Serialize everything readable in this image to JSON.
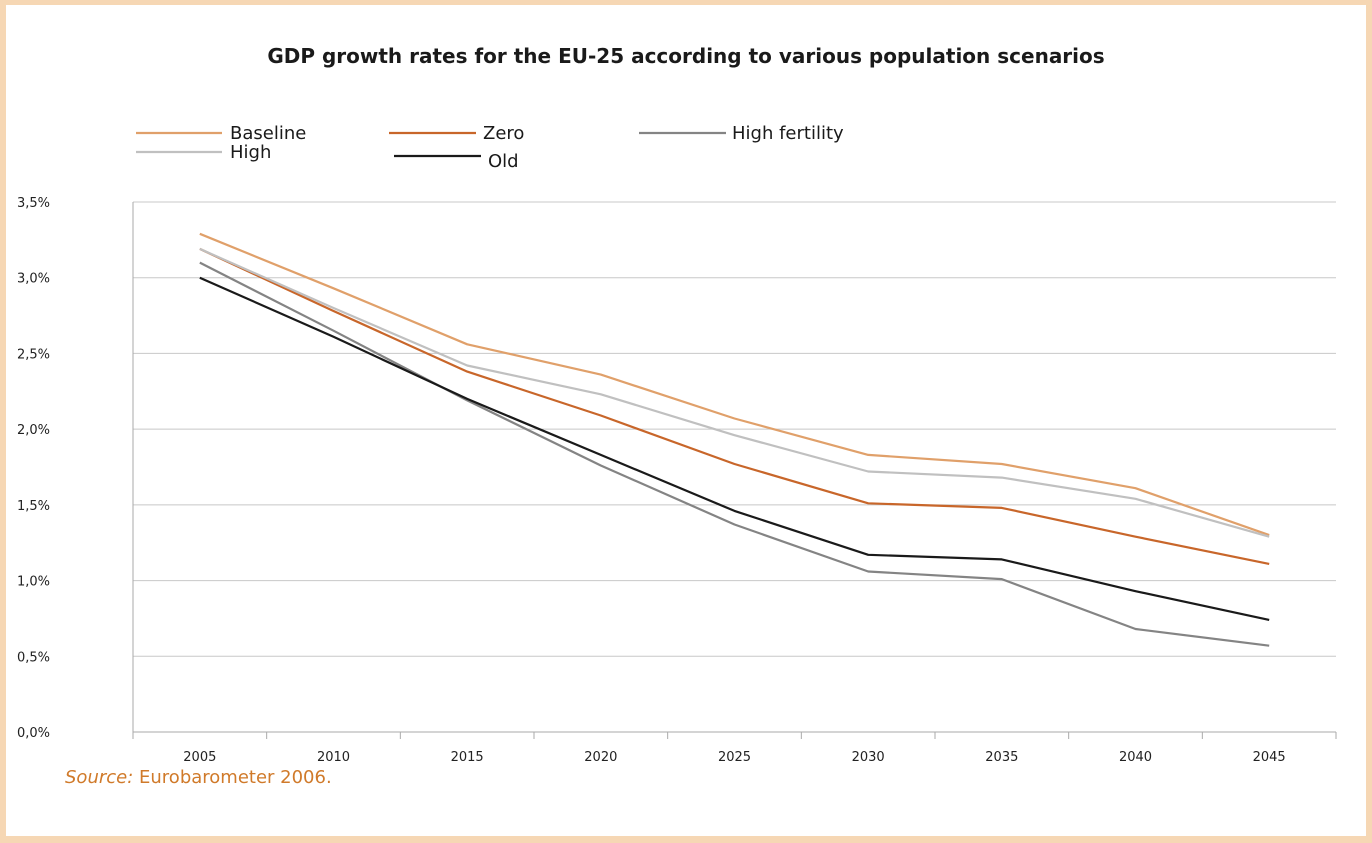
{
  "chart_data": {
    "type": "line",
    "title": "GDP growth rates for the EU-25 according to various population scenarios",
    "xlabel": "",
    "ylabel": "",
    "categories": [
      "2005",
      "2010",
      "2015",
      "2020",
      "2025",
      "2030",
      "2035",
      "2040",
      "2045"
    ],
    "y_ticks": [
      "0,0%",
      "0,5%",
      "1,0%",
      "1,5%",
      "2,0%",
      "2,5%",
      "3,0%",
      "3,5%"
    ],
    "ylim": [
      0,
      3.5
    ],
    "grid": true,
    "legend_position": "top-left",
    "series": [
      {
        "name": "Baseline",
        "color": "#e0a06a",
        "values": [
          3.29,
          2.93,
          2.56,
          2.36,
          2.07,
          1.83,
          1.77,
          1.61,
          1.3
        ]
      },
      {
        "name": "Zero",
        "color": "#c8662a",
        "values": [
          3.19,
          2.78,
          2.38,
          2.09,
          1.77,
          1.51,
          1.48,
          1.29,
          1.11
        ]
      },
      {
        "name": "High fertility",
        "color": "#848484",
        "values": [
          3.1,
          2.65,
          2.19,
          1.76,
          1.37,
          1.06,
          1.01,
          0.68,
          0.57
        ]
      },
      {
        "name": "High",
        "color": "#c0c0c0",
        "values": [
          3.19,
          2.8,
          2.42,
          2.23,
          1.96,
          1.72,
          1.68,
          1.54,
          1.29
        ]
      },
      {
        "name": "Old",
        "color": "#1a1a1a",
        "values": [
          3.0,
          2.61,
          2.2,
          1.83,
          1.46,
          1.17,
          1.14,
          0.93,
          0.74
        ]
      }
    ]
  },
  "source": {
    "label": "Source:",
    "text": " Eurobarometer 2006."
  }
}
